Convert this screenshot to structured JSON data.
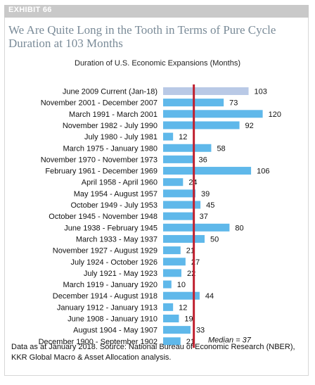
{
  "exhibit_label": "EXHIBIT 66",
  "title": "We Are Quite Long in the Tooth in Terms of Pure Cycle Duration at 103 Months",
  "footnote": "Data as at January 2018. Source: National Bureau of Economic Research (NBER), KKR Global Macro & Asset Allocation analysis.",
  "colors": {
    "bar": "#5fb8ea",
    "current_bar": "#b9c9e6",
    "median_line": "#c0202f",
    "title": "#7a8b98"
  },
  "chart_data": {
    "type": "bar",
    "orientation": "horizontal",
    "title": "Duration of U.S. Economic Expansions (Months)",
    "xlabel": "",
    "ylabel": "",
    "xlim": [
      0,
      120
    ],
    "grid": false,
    "categories": [
      "June 2009 Current (Jan-18)",
      "November 2001 - December 2007",
      "March 1991 - March 2001",
      "November 1982 - July 1990",
      "July 1980 - July 1981",
      "March 1975 - January 1980",
      "November 1970 - November 1973",
      "February 1961 - December 1969",
      "April 1958 - April 1960",
      "May 1954 - August 1957",
      "October 1949 - July 1953",
      "October 1945 - November 1948",
      "June 1938 - February 1945",
      "March 1933 - May 1937",
      "November 1927 - August 1929",
      "July 1924 - October 1926",
      "July 1921 - May 1923",
      "March 1919 - January 1920",
      "December 1914 - August 1918",
      "January 1912 - January 1913",
      "June 1908 - January 1910",
      "August 1904 - May 1907",
      "December 1900 - September 1902"
    ],
    "values": [
      103,
      73,
      120,
      92,
      12,
      58,
      36,
      106,
      24,
      39,
      45,
      37,
      80,
      50,
      21,
      27,
      22,
      10,
      44,
      12,
      19,
      33,
      21
    ],
    "highlight_index": 0,
    "median": {
      "value": 37,
      "label": "Median = 37"
    }
  }
}
